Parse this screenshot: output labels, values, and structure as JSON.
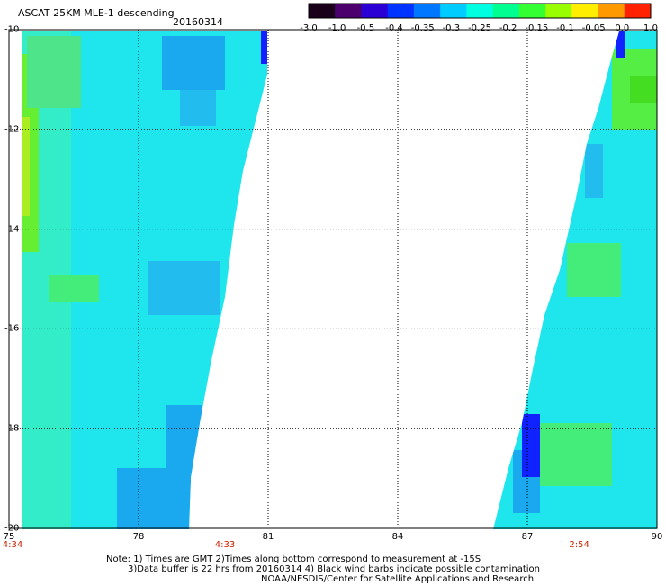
{
  "header": {
    "title": "ASCAT 25KM MLE-1 descending",
    "date": "20160314"
  },
  "colorbar": {
    "labels": [
      "-3.0",
      "-1.0",
      "-0.5",
      "-0.4",
      "-0.35",
      "-0.3",
      "-0.25",
      "-0.2",
      "-0.15",
      "-0.1",
      "-0.05",
      "0.0",
      "1.0"
    ],
    "colors": [
      "#1a001a",
      "#4b006e",
      "#2a00d4",
      "#0033ff",
      "#0077ff",
      "#00ccff",
      "#00ffe0",
      "#00ff90",
      "#33ff33",
      "#99ff00",
      "#ffee00",
      "#ff9900",
      "#ff2200"
    ]
  },
  "map": {
    "lon_range": [
      75,
      90
    ],
    "lat_range": [
      -20,
      -10
    ],
    "x_ticks": [
      "75",
      "78",
      "81",
      "84",
      "87",
      "90"
    ],
    "y_ticks": [
      "-10",
      "-12",
      "-14",
      "-16",
      "-18",
      "-20"
    ],
    "time_labels": [
      {
        "lon": 75,
        "text": "4:34"
      },
      {
        "lon": 80,
        "text": "4:33"
      },
      {
        "lon": 88.2,
        "text": "2:54"
      }
    ],
    "grid": true
  },
  "notes": {
    "line1": "Note: 1) Times are GMT 2)Times along bottom correspond to measurement at -15S",
    "line2": "3)Data buffer is 22 hrs from 20160314 4) Black wind barbs indicate possible contamination",
    "line3": "NOAA/NESDIS/Center for Satellite Applications and Research"
  }
}
